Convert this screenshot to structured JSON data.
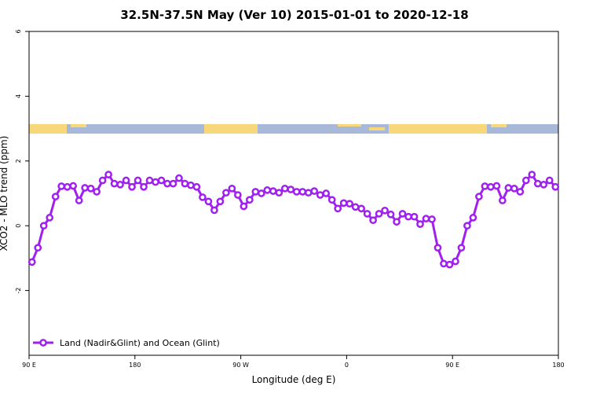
{
  "chart_data": {
    "type": "line",
    "title": "32.5N-37.5N May (Ver 10)   2015-01-01 to 2020-12-18",
    "x_label": "Longitude (deg E)",
    "y_label": "XCO2 - MLO trend (ppm)",
    "legend_position": "bottom-left",
    "x": [
      92.5,
      97.5,
      102.5,
      107.5,
      112.5,
      117.5,
      122.5,
      127.5,
      132.5,
      137.5,
      142.5,
      147.5,
      152.5,
      157.5,
      162.5,
      167.5,
      172.5,
      177.5,
      182.5,
      187.5,
      192.5,
      197.5,
      202.5,
      207.5,
      212.5,
      217.5,
      222.5,
      227.5,
      232.5,
      237.5,
      242.5,
      247.5,
      252.5,
      257.5,
      262.5,
      267.5,
      272.5,
      277.5,
      282.5,
      287.5,
      292.5,
      297.5,
      302.5,
      307.5,
      312.5,
      317.5,
      322.5,
      327.5,
      332.5,
      337.5,
      342.5,
      347.5,
      352.5,
      357.5,
      362.5,
      367.5,
      372.5,
      377.5,
      382.5,
      387.5,
      392.5,
      397.5,
      402.5,
      407.5,
      412.5,
      417.5,
      422.5,
      427.5,
      432.5,
      437.5,
      442.5,
      447.5,
      452.5,
      457.5,
      462.5,
      467.5,
      472.5,
      477.5,
      482.5,
      487.5,
      492.5,
      497.5,
      502.5,
      507.5,
      512.5,
      517.5,
      522.5,
      527.5,
      532.5,
      537.5
    ],
    "series": [
      {
        "name": "Land (Nadir&Glint) and Ocean (Glint)",
        "color": "#a020f0",
        "values": [
          -1.12,
          -0.68,
          0.0,
          0.25,
          0.9,
          1.22,
          1.2,
          1.23,
          0.78,
          1.17,
          1.15,
          1.05,
          1.4,
          1.58,
          1.3,
          1.27,
          1.4,
          1.2,
          1.4,
          1.2,
          1.4,
          1.35,
          1.4,
          1.3,
          1.3,
          1.47,
          1.3,
          1.25,
          1.2,
          0.88,
          0.75,
          0.48,
          0.75,
          1.02,
          1.15,
          0.95,
          0.6,
          0.8,
          1.05,
          1.0,
          1.1,
          1.07,
          1.02,
          1.15,
          1.12,
          1.05,
          1.05,
          1.02,
          1.07,
          0.95,
          1.0,
          0.8,
          0.53,
          0.7,
          0.68,
          0.58,
          0.53,
          0.37,
          0.17,
          0.37,
          0.47,
          0.35,
          0.12,
          0.37,
          0.28,
          0.28,
          0.05,
          0.22,
          0.2,
          -0.68,
          -1.17,
          -1.2,
          -1.1,
          -0.68,
          0.0,
          0.25,
          0.9,
          1.22,
          1.2,
          1.23,
          0.78,
          1.17,
          1.15,
          1.05,
          1.4,
          1.58,
          1.3,
          1.27,
          1.4,
          1.2
        ]
      }
    ],
    "xlim": [
      90,
      540
    ],
    "xticks": [
      {
        "value": 90,
        "label": "90 E"
      },
      180,
      {
        "value": 270,
        "label": "90 W"
      },
      {
        "value": 360,
        "label": "0"
      },
      {
        "value": 450,
        "label": "90 E"
      },
      {
        "value": 540,
        "label": "180"
      }
    ],
    "ylim": [
      -4,
      6
    ],
    "yticks": [
      -2,
      0,
      2,
      4,
      6
    ]
  }
}
